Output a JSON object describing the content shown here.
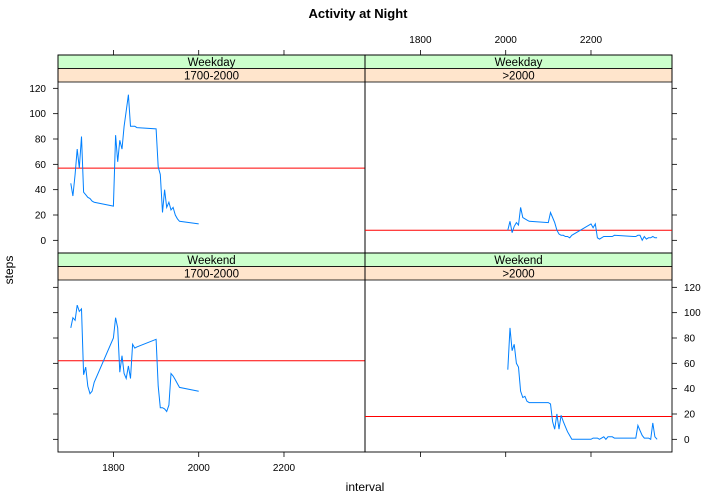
{
  "chart_data": {
    "type": "line",
    "title": "Activity at Night",
    "xlabel": "interval",
    "ylabel": "steps",
    "xlim": [
      1670,
      2390
    ],
    "ylim": [
      -10,
      125
    ],
    "x_ticks": [
      1800,
      2000,
      2200
    ],
    "y_ticks": [
      0,
      20,
      40,
      60,
      80,
      100,
      120
    ],
    "strip_colors": {
      "day": "#ccffcc",
      "period": "#ffe5cc"
    },
    "line_color": "#0080ff",
    "mean_line_color": "#ff0000",
    "grid": false,
    "panels": [
      {
        "day": "Weekday",
        "period": "1700-2000",
        "mean": 57,
        "x": [
          1700,
          1705,
          1710,
          1715,
          1720,
          1725,
          1730,
          1735,
          1740,
          1745,
          1750,
          1755,
          1800,
          1805,
          1810,
          1815,
          1820,
          1825,
          1830,
          1835,
          1840,
          1845,
          1850,
          1855,
          1900,
          1905,
          1910,
          1915,
          1920,
          1925,
          1930,
          1935,
          1940,
          1945,
          1950,
          1955,
          2000
        ],
        "y": [
          45,
          35,
          52,
          72,
          57,
          82,
          38,
          36,
          34,
          33,
          31,
          30,
          27,
          83,
          62,
          79,
          72,
          90,
          102,
          115,
          90,
          90,
          90,
          89,
          88,
          58,
          52,
          22,
          40,
          26,
          30,
          24,
          26,
          20,
          17,
          15,
          13
        ]
      },
      {
        "day": "Weekday",
        "period": ">2000",
        "mean": 8,
        "x": [
          2005,
          2010,
          2015,
          2020,
          2025,
          2030,
          2035,
          2040,
          2045,
          2050,
          2055,
          2100,
          2105,
          2110,
          2115,
          2120,
          2125,
          2130,
          2135,
          2140,
          2145,
          2150,
          2155,
          2200,
          2205,
          2210,
          2215,
          2220,
          2225,
          2230,
          2235,
          2240,
          2245,
          2250,
          2255,
          2300,
          2305,
          2310,
          2315,
          2320,
          2325,
          2330,
          2335,
          2340,
          2345,
          2350,
          2355
        ],
        "y": [
          8,
          15,
          6,
          11,
          14,
          12,
          26,
          18,
          17,
          16,
          15,
          14,
          22,
          18,
          14,
          8,
          5,
          4,
          4,
          3,
          3,
          2,
          4,
          13,
          10,
          13,
          2,
          1,
          2,
          3,
          3,
          3,
          3,
          3,
          4,
          3,
          3,
          4,
          4,
          0,
          3,
          1,
          2,
          2,
          3,
          2,
          2
        ]
      },
      {
        "day": "Weekend",
        "period": "1700-2000",
        "mean": 62,
        "x": [
          1700,
          1705,
          1710,
          1715,
          1720,
          1725,
          1730,
          1735,
          1740,
          1745,
          1750,
          1755,
          1800,
          1805,
          1810,
          1815,
          1820,
          1825,
          1830,
          1835,
          1840,
          1845,
          1850,
          1855,
          1900,
          1905,
          1910,
          1915,
          1920,
          1925,
          1930,
          1935,
          1940,
          1945,
          1950,
          1955,
          2000
        ],
        "y": [
          88,
          96,
          94,
          106,
          101,
          103,
          51,
          57,
          42,
          36,
          38,
          45,
          80,
          96,
          88,
          53,
          66,
          52,
          48,
          58,
          48,
          75,
          72,
          73,
          79,
          42,
          25,
          25,
          24,
          22,
          27,
          52,
          50,
          47,
          44,
          41,
          38
        ]
      },
      {
        "day": "Weekend",
        "period": ">2000",
        "mean": 18,
        "x": [
          2005,
          2010,
          2015,
          2020,
          2025,
          2030,
          2035,
          2040,
          2045,
          2050,
          2055,
          2100,
          2105,
          2110,
          2115,
          2120,
          2125,
          2130,
          2135,
          2140,
          2145,
          2150,
          2155,
          2200,
          2205,
          2210,
          2215,
          2220,
          2225,
          2230,
          2235,
          2240,
          2245,
          2250,
          2255,
          2300,
          2305,
          2310,
          2315,
          2320,
          2325,
          2330,
          2335,
          2340,
          2345,
          2350,
          2355
        ],
        "y": [
          55,
          88,
          70,
          75,
          60,
          57,
          38,
          33,
          34,
          30,
          29,
          29,
          28,
          14,
          8,
          20,
          8,
          19,
          14,
          10,
          6,
          3,
          0,
          0,
          1,
          1,
          1,
          0,
          1,
          2,
          0,
          2,
          2,
          2,
          1,
          1,
          1,
          11,
          7,
          3,
          1,
          1,
          1,
          0,
          13,
          2,
          0
        ]
      }
    ]
  }
}
